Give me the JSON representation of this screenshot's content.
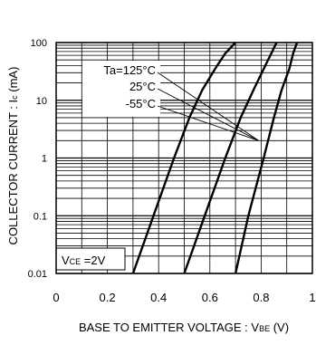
{
  "chart_data": {
    "type": "line",
    "xlabel": "BASE TO EMITTER VOLTAGE : V",
    "xlabel_sub": "BE",
    "xlabel_unit": " (V)",
    "ylabel": "COLLECTOR CURRENT : I",
    "ylabel_sub": "c",
    "ylabel_unit": " (mA)",
    "x_ticks": [
      "0",
      "0.2",
      "0.4",
      "0.6",
      "0.8",
      "1"
    ],
    "y_ticks": [
      "0.01",
      "0.1",
      "1",
      "10",
      "100"
    ],
    "xlim": [
      0,
      1.0
    ],
    "ylim": [
      0.01,
      100
    ],
    "y_scale": "log",
    "grid": true,
    "legend_lines": [
      "Ta=125°C",
      "25°C",
      "-55°C"
    ],
    "condition_prefix": "V",
    "condition_sub": "CE",
    "condition_value": " =2V",
    "series": [
      {
        "x": [
          0.3,
          0.38,
          0.46,
          0.52,
          0.57,
          0.62,
          0.66,
          0.7
        ],
        "y": [
          0.01,
          0.1,
          1,
          5,
          15,
          35,
          65,
          100
        ]
      },
      {
        "x": [
          0.5,
          0.58,
          0.66,
          0.72,
          0.77,
          0.81,
          0.84,
          0.86
        ],
        "y": [
          0.01,
          0.1,
          1,
          5,
          15,
          35,
          65,
          100
        ]
      },
      {
        "x": [
          0.7,
          0.75,
          0.81,
          0.85,
          0.88,
          0.91,
          0.925,
          0.94
        ],
        "y": [
          0.01,
          0.1,
          1,
          5,
          15,
          35,
          65,
          100
        ]
      }
    ]
  }
}
